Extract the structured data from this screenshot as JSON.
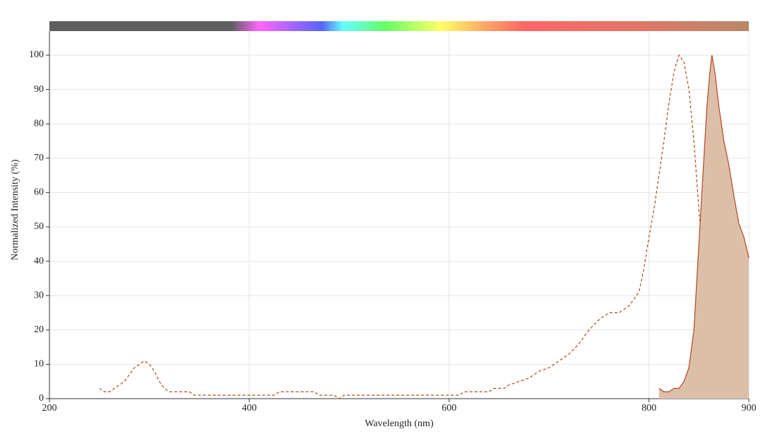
{
  "chart_data": {
    "type": "line",
    "x_label": "Wavelength (nm)",
    "y_label": "Normalized Intensity (%)",
    "xlim": [
      200,
      900
    ],
    "ylim": [
      0,
      107
    ],
    "xticks": [
      200,
      400,
      600,
      800,
      900
    ],
    "yticks": [
      0,
      10,
      20,
      30,
      40,
      50,
      60,
      70,
      80,
      90,
      100
    ],
    "grid": true,
    "series": [
      {
        "color": "#b5461c",
        "style": "dashed",
        "fill": false,
        "x": [
          250,
          255,
          260,
          265,
          270,
          275,
          280,
          285,
          290,
          295,
          300,
          305,
          310,
          315,
          320,
          340,
          345,
          425,
          430,
          465,
          470,
          485,
          490,
          495,
          610,
          615,
          640,
          645,
          655,
          660,
          670,
          680,
          690,
          700,
          710,
          720,
          730,
          740,
          750,
          760,
          770,
          780,
          790,
          795,
          800,
          805,
          810,
          815,
          820,
          825,
          830,
          835,
          840,
          845,
          850,
          855,
          860,
          865,
          870,
          875,
          880,
          890,
          900
        ],
        "values": [
          3,
          2,
          2,
          3,
          4,
          5,
          7,
          9,
          10,
          11,
          10,
          8,
          5,
          3,
          2,
          2,
          1,
          1,
          2,
          2,
          1,
          1,
          0,
          1,
          1,
          2,
          2,
          3,
          3,
          4,
          5,
          6,
          8,
          9,
          11,
          13,
          16,
          20,
          23,
          25,
          25,
          27,
          31,
          38,
          47,
          55,
          65,
          75,
          86,
          95,
          100,
          98,
          90,
          75,
          55,
          38,
          24,
          14,
          7,
          4,
          2,
          1,
          1
        ]
      },
      {
        "color": "#b5461c",
        "style": "solid",
        "fill": true,
        "fill_color": "#dcbfa9",
        "x": [
          810,
          815,
          820,
          825,
          830,
          835,
          840,
          845,
          848,
          851,
          855,
          858,
          861,
          863,
          866,
          870,
          875,
          880,
          885,
          890,
          895,
          900
        ],
        "values": [
          3,
          2,
          2,
          3,
          3,
          5,
          9,
          20,
          35,
          50,
          70,
          85,
          95,
          100,
          95,
          85,
          75,
          68,
          59,
          51,
          47,
          41
        ]
      }
    ]
  }
}
